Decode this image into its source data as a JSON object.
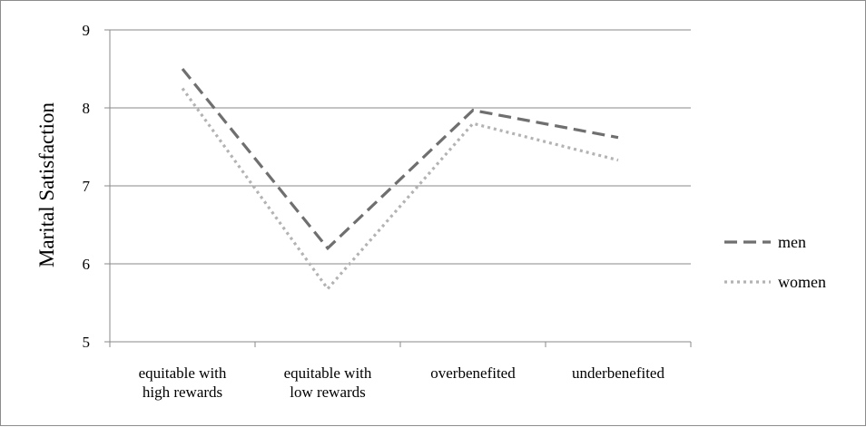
{
  "chart_data": {
    "type": "line",
    "title": "",
    "xlabel": "",
    "ylabel": "Marital Satisfaction",
    "ylim": [
      5,
      9
    ],
    "yticks": [
      5,
      6,
      7,
      8,
      9
    ],
    "grid": true,
    "legend_position": "right",
    "categories": [
      [
        "equitable with",
        "high rewards"
      ],
      [
        "equitable with",
        "low rewards"
      ],
      [
        "overbenefited"
      ],
      [
        "underbenefited"
      ]
    ],
    "series": [
      {
        "name": "men",
        "values": [
          8.5,
          6.2,
          7.97,
          7.62
        ],
        "color": "#6f6f6f",
        "style": "dashed"
      },
      {
        "name": "women",
        "values": [
          8.25,
          5.68,
          7.8,
          7.33
        ],
        "color": "#b3b3b3",
        "style": "dotted"
      }
    ]
  }
}
